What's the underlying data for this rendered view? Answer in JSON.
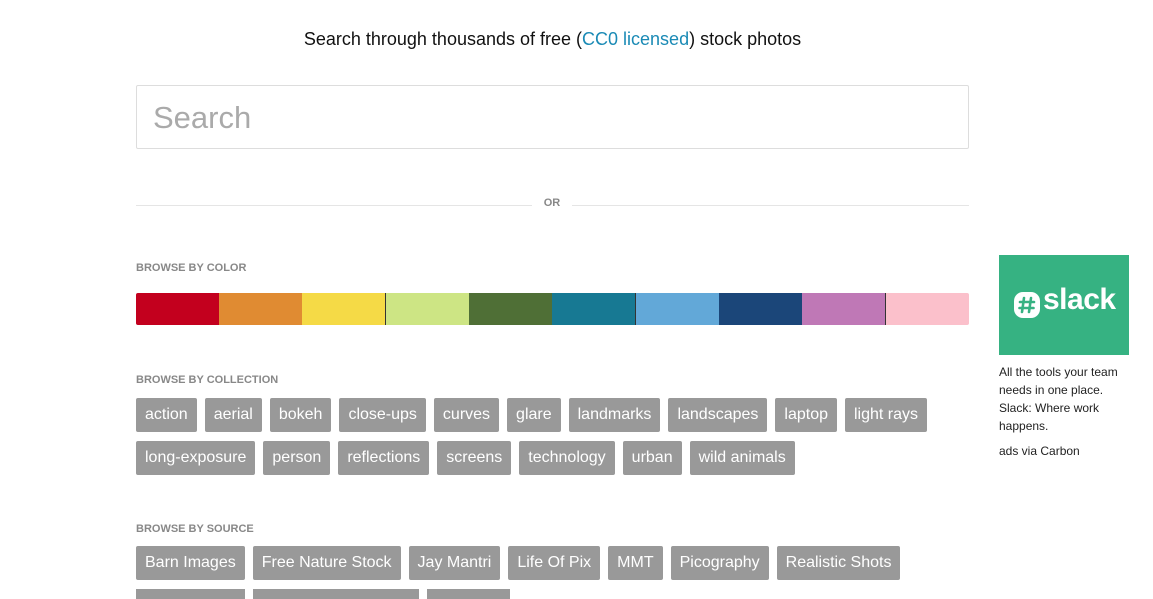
{
  "header": {
    "title_before": "Search through thousands of free (",
    "title_link": "CC0 licensed",
    "title_after": ") stock photos"
  },
  "search": {
    "placeholder": "Search"
  },
  "divider": "OR",
  "browse_by_color": {
    "label": "BROWSE BY COLOR"
  },
  "browse_by_collection": {
    "label": "BROWSE BY COLLECTION",
    "tags": [
      "action",
      "aerial",
      "bokeh",
      "close-ups",
      "curves",
      "glare",
      "landmarks",
      "landscapes",
      "laptop",
      "light rays",
      "long-exposure",
      "person",
      "reflections",
      "screens",
      "technology",
      "urban",
      "wild animals"
    ]
  },
  "browse_by_source": {
    "label": "BROWSE BY SOURCE",
    "tags": [
      "Barn Images",
      "Free Nature Stock",
      "Jay Mantri",
      "Life Of Pix",
      "MMT",
      "Picography",
      "Realistic Shots"
    ]
  },
  "ad": {
    "brand": "slack",
    "text": "All the tools your team needs in one place. Slack: Where work happens.",
    "via": "ads via Carbon"
  }
}
